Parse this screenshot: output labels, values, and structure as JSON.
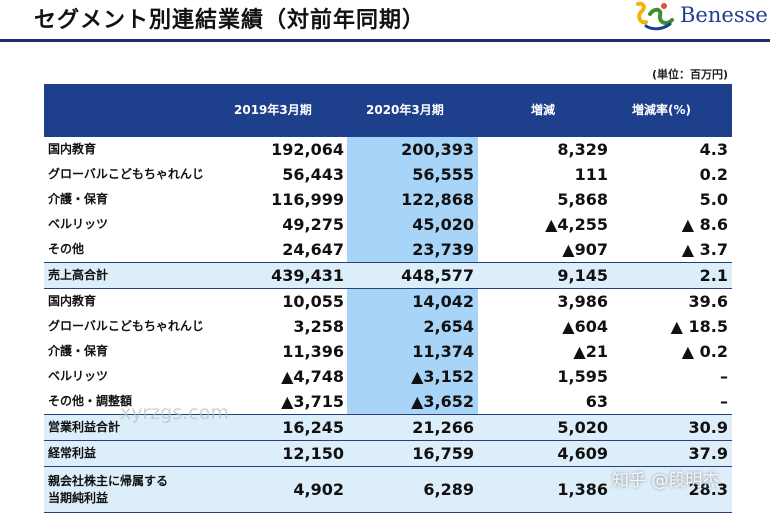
{
  "title": "セグメント別連結業績（対前年同期）",
  "brand": {
    "name": "Benesse",
    "accent": "#1e3f8c"
  },
  "unit": "(単位：百万円)",
  "table": {
    "headers": [
      "",
      "2019年3月期",
      "2020年3月期",
      "増減",
      "増減率(%)"
    ],
    "rows": [
      {
        "label": "国内教育",
        "v2019": "192,064",
        "v2020": "200,393",
        "diff": "8,329",
        "rate": "4.3"
      },
      {
        "label": "グローバルこどもちゃれんじ",
        "v2019": "56,443",
        "v2020": "56,555",
        "diff": "111",
        "rate": "0.2"
      },
      {
        "label": "介護・保育",
        "v2019": "116,999",
        "v2020": "122,868",
        "diff": "5,868",
        "rate": "5.0"
      },
      {
        "label": "ベルリッツ",
        "v2019": "49,275",
        "v2020": "45,020",
        "diff": "▲4,255",
        "rate": "▲ 8.6"
      },
      {
        "label": "その他",
        "v2019": "24,647",
        "v2020": "23,739",
        "diff": "▲907",
        "rate": "▲ 3.7"
      },
      {
        "label": "売上高合計",
        "v2019": "439,431",
        "v2020": "448,577",
        "diff": "9,145",
        "rate": "2.1",
        "total": true
      },
      {
        "label": "国内教育",
        "v2019": "10,055",
        "v2020": "14,042",
        "diff": "3,986",
        "rate": "39.6"
      },
      {
        "label": "グローバルこどもちゃれんじ",
        "v2019": "3,258",
        "v2020": "2,654",
        "diff": "▲604",
        "rate": "▲ 18.5"
      },
      {
        "label": "介護・保育",
        "v2019": "11,396",
        "v2020": "11,374",
        "diff": "▲21",
        "rate": "▲ 0.2"
      },
      {
        "label": "ベルリッツ",
        "v2019": "▲4,748",
        "v2020": "▲3,152",
        "diff": "1,595",
        "rate": "–"
      },
      {
        "label": "その他・調整額",
        "v2019": "▲3,715",
        "v2020": "▲3,652",
        "diff": "63",
        "rate": "–"
      },
      {
        "label": "営業利益合計",
        "v2019": "16,245",
        "v2020": "21,266",
        "diff": "5,020",
        "rate": "30.9",
        "total": true
      },
      {
        "label": "経常利益",
        "v2019": "12,150",
        "v2020": "16,759",
        "diff": "4,609",
        "rate": "37.9",
        "total": true
      },
      {
        "label": "親会社株主に帰属する当期純利益",
        "label_line1": "親会社株主に帰属する",
        "label_line2": "当期純利益",
        "v2019": "4,902",
        "v2020": "6,289",
        "diff": "1,386",
        "rate": "28.3",
        "total": true,
        "tall": true
      }
    ]
  },
  "watermarks": [
    "xyrzgs.com",
    "知乎 @段明杰"
  ]
}
